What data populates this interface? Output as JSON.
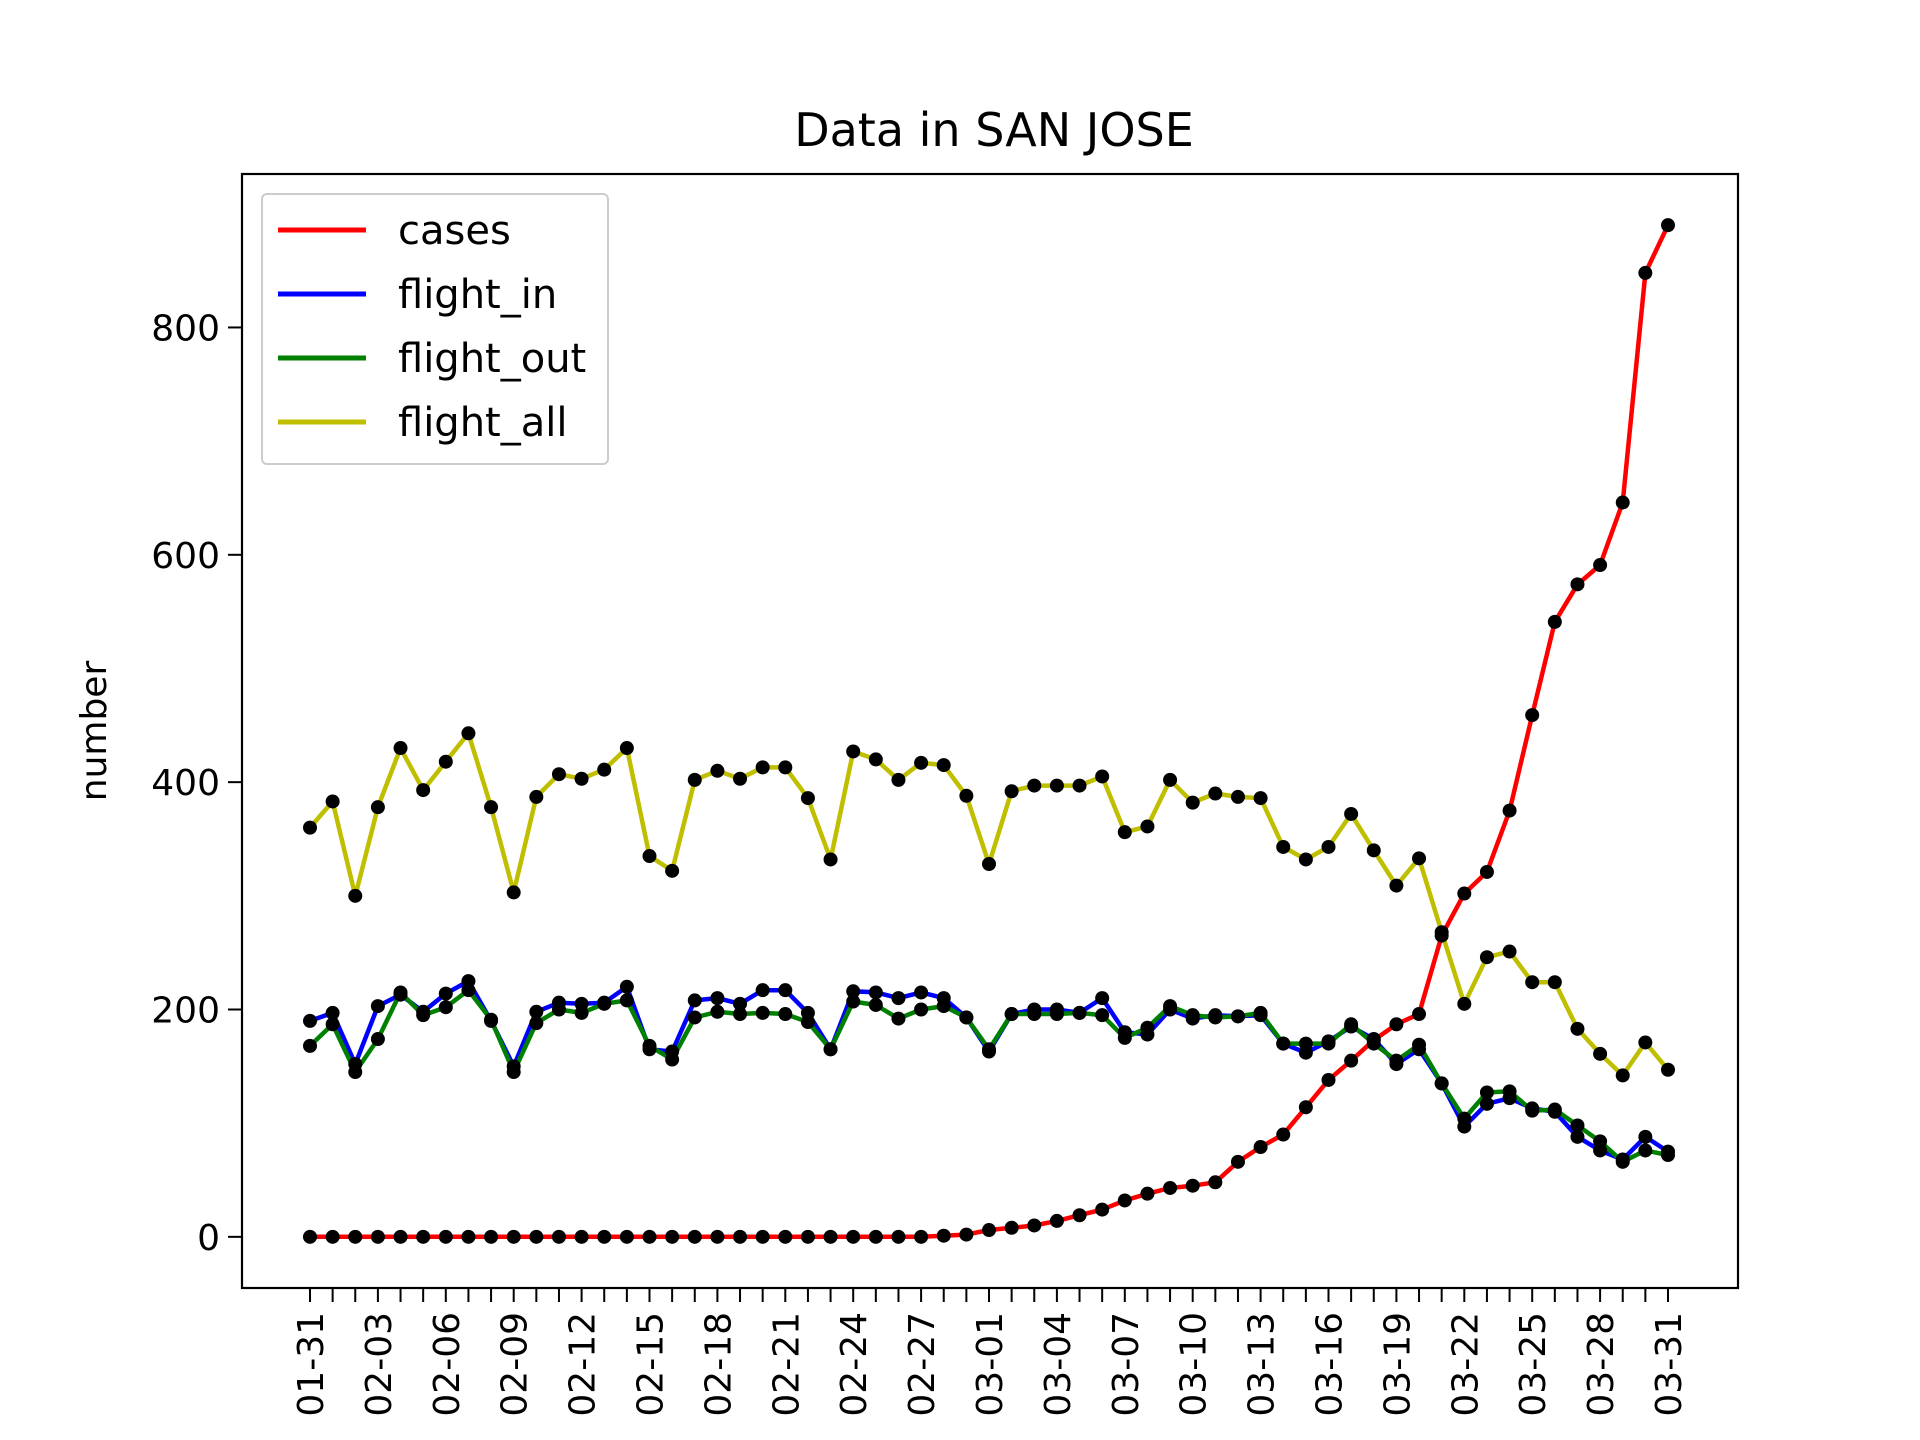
{
  "chart_data": {
    "type": "line",
    "title": "Data in SAN JOSE",
    "xlabel": "",
    "ylabel": "number",
    "ylim": [
      -45,
      935
    ],
    "yticks": [
      0,
      200,
      400,
      600,
      800
    ],
    "grid": false,
    "legend_position": "top-left",
    "x": [
      "01-31",
      "02-01",
      "02-02",
      "02-03",
      "02-04",
      "02-05",
      "02-06",
      "02-07",
      "02-08",
      "02-09",
      "02-10",
      "02-11",
      "02-12",
      "02-13",
      "02-14",
      "02-15",
      "02-16",
      "02-17",
      "02-18",
      "02-19",
      "02-20",
      "02-21",
      "02-22",
      "02-23",
      "02-24",
      "02-25",
      "02-26",
      "02-27",
      "02-28",
      "02-29",
      "03-01",
      "03-02",
      "03-03",
      "03-04",
      "03-05",
      "03-06",
      "03-07",
      "03-08",
      "03-09",
      "03-10",
      "03-11",
      "03-12",
      "03-13",
      "03-14",
      "03-15",
      "03-16",
      "03-17",
      "03-18",
      "03-19",
      "03-20",
      "03-21",
      "03-22",
      "03-23",
      "03-24",
      "03-25",
      "03-26",
      "03-27",
      "03-28",
      "03-29",
      "03-30",
      "03-31"
    ],
    "xtick_labels": [
      "01-31",
      "02-03",
      "02-06",
      "02-09",
      "02-12",
      "02-15",
      "02-18",
      "02-21",
      "02-24",
      "02-27",
      "03-01",
      "03-04",
      "03-07",
      "03-10",
      "03-13",
      "03-16",
      "03-19",
      "03-22",
      "03-25",
      "03-28",
      "03-31"
    ],
    "series": [
      {
        "name": "cases",
        "color": "#ff0000",
        "values": [
          0,
          0,
          0,
          0,
          0,
          0,
          0,
          0,
          0,
          0,
          0,
          0,
          0,
          0,
          0,
          0,
          0,
          0,
          0,
          0,
          0,
          0,
          0,
          0,
          0,
          0,
          0,
          0,
          1,
          2,
          6,
          8,
          10,
          14,
          19,
          24,
          32,
          38,
          43,
          45,
          48,
          66,
          79,
          90,
          114,
          138,
          155,
          173,
          187,
          196,
          265,
          302,
          321,
          375,
          459,
          541,
          574,
          591,
          646,
          848,
          890
        ]
      },
      {
        "name": "flight_in",
        "color": "#0000ff",
        "values": [
          190,
          197,
          152,
          203,
          213,
          198,
          214,
          225,
          190,
          150,
          198,
          206,
          205,
          206,
          220,
          165,
          163,
          208,
          210,
          205,
          217,
          217,
          197,
          165,
          216,
          215,
          210,
          215,
          210,
          193,
          163,
          196,
          200,
          200,
          197,
          210,
          180,
          178,
          200,
          192,
          195,
          194,
          195,
          170,
          162,
          172,
          185,
          174,
          152,
          165,
          135,
          97,
          117,
          122,
          113,
          110,
          88,
          76,
          68,
          88,
          75
        ]
      },
      {
        "name": "flight_out",
        "color": "#008000",
        "values": [
          168,
          187,
          145,
          174,
          215,
          195,
          202,
          217,
          191,
          145,
          188,
          200,
          197,
          205,
          208,
          168,
          156,
          193,
          198,
          196,
          197,
          196,
          189,
          165,
          207,
          204,
          192,
          200,
          203,
          193,
          165,
          196,
          196,
          196,
          197,
          195,
          175,
          184,
          203,
          195,
          193,
          194,
          197,
          170,
          170,
          170,
          187,
          170,
          155,
          169,
          135,
          104,
          127,
          128,
          111,
          112,
          98,
          84,
          66,
          76,
          72
        ]
      },
      {
        "name": "flight_all",
        "color": "#bfbf00",
        "values": [
          360,
          383,
          300,
          378,
          430,
          393,
          418,
          443,
          378,
          303,
          387,
          407,
          403,
          411,
          430,
          335,
          322,
          402,
          410,
          403,
          413,
          413,
          386,
          332,
          427,
          420,
          402,
          417,
          415,
          388,
          328,
          392,
          397,
          397,
          397,
          405,
          356,
          361,
          402,
          382,
          390,
          387,
          386,
          343,
          332,
          343,
          372,
          340,
          309,
          333,
          268,
          205,
          246,
          251,
          224,
          224,
          183,
          161,
          142,
          171,
          147
        ]
      }
    ]
  }
}
